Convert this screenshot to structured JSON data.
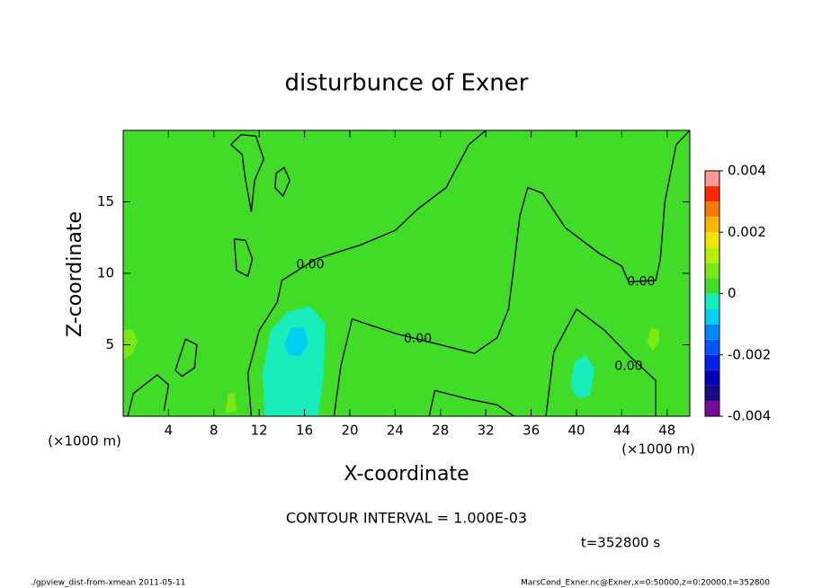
{
  "chart_data": {
    "type": "contour",
    "title": "disturbunce of Exner",
    "x_label": "X-coordinate",
    "y_label": "Z-coordinate",
    "x_unit": "(×1000 m)",
    "y_unit": "(×1000 m)",
    "xlim": [
      0,
      50
    ],
    "ylim": [
      0,
      20
    ],
    "xticks": [
      4,
      8,
      12,
      16,
      20,
      24,
      28,
      32,
      36,
      40,
      44,
      48
    ],
    "yticks": [
      5,
      10,
      15
    ],
    "colorbar": {
      "levels": [
        -0.004,
        -0.0035,
        -0.003,
        -0.0025,
        -0.002,
        -0.0015,
        -0.001,
        -0.0005,
        0,
        0.0005,
        0.001,
        0.0015,
        0.002,
        0.0025,
        0.003,
        0.0035,
        0.004
      ],
      "colors": [
        "#7a0a9a",
        "#1a0a8a",
        "#0000b8",
        "#0022e6",
        "#0055ff",
        "#0088ff",
        "#00d0f0",
        "#18eebb",
        "#40dc28",
        "#7ae814",
        "#b4f000",
        "#f0e600",
        "#ffb400",
        "#ff7800",
        "#ff2800",
        "#ff9a9a"
      ],
      "ticks": [
        0.004,
        0.002,
        0,
        -0.002,
        -0.004
      ]
    },
    "regions": [
      {
        "value": 0.0002,
        "points": [
          [
            0,
            0
          ],
          [
            50,
            0
          ],
          [
            50,
            20
          ],
          [
            0,
            20
          ]
        ]
      },
      {
        "value": -0.0004,
        "points": [
          [
            12.5,
            0
          ],
          [
            12.3,
            3
          ],
          [
            13,
            6
          ],
          [
            14.5,
            7.3
          ],
          [
            16.5,
            7.7
          ],
          [
            17.8,
            6.5
          ],
          [
            17.7,
            3
          ],
          [
            17.2,
            0
          ]
        ]
      },
      {
        "value": -0.0009,
        "points": [
          [
            14.2,
            5
          ],
          [
            14.8,
            6.2
          ],
          [
            16,
            6.2
          ],
          [
            16.3,
            5
          ],
          [
            15.6,
            4.2
          ],
          [
            14.6,
            4.3
          ]
        ]
      },
      {
        "value": -0.0004,
        "points": [
          [
            39.5,
            2
          ],
          [
            39.8,
            3.8
          ],
          [
            40.8,
            4.3
          ],
          [
            41.6,
            3.3
          ],
          [
            41.2,
            1.5
          ],
          [
            40.2,
            1.2
          ]
        ]
      },
      {
        "value": 0.0006,
        "points": [
          [
            0,
            4
          ],
          [
            0.8,
            4.3
          ],
          [
            1.3,
            5.3
          ],
          [
            0.8,
            6.1
          ],
          [
            0,
            6
          ]
        ]
      },
      {
        "value": 0.0006,
        "points": [
          [
            46.2,
            5.2
          ],
          [
            46.6,
            6.2
          ],
          [
            47.3,
            6.1
          ],
          [
            47.3,
            5.1
          ],
          [
            46.7,
            4.6
          ]
        ]
      },
      {
        "value": 0.0006,
        "points": [
          [
            9,
            0.2
          ],
          [
            9.3,
            1.6
          ],
          [
            9.8,
            1.7
          ],
          [
            10,
            0.4
          ]
        ]
      }
    ],
    "contours": [
      {
        "level": 0,
        "points": [
          [
            11.3,
            0
          ],
          [
            11,
            3
          ],
          [
            12,
            6
          ],
          [
            13.6,
            8
          ],
          [
            14,
            9.5
          ],
          [
            17,
            11
          ],
          [
            21,
            12
          ],
          [
            24,
            13
          ],
          [
            26,
            14.5
          ],
          [
            28.5,
            16
          ],
          [
            30.5,
            19
          ],
          [
            32,
            20
          ]
        ]
      },
      {
        "level": 0,
        "points": [
          [
            18.6,
            0
          ],
          [
            19.2,
            3.5
          ],
          [
            20.2,
            6.8
          ],
          [
            24,
            5.8
          ],
          [
            28,
            5
          ],
          [
            31,
            4.4
          ],
          [
            33,
            5.5
          ],
          [
            34,
            7.5
          ],
          [
            34.4,
            10
          ],
          [
            35,
            14
          ],
          [
            35.7,
            16
          ],
          [
            37,
            15.6
          ],
          [
            39,
            13.2
          ],
          [
            42,
            11.4
          ],
          [
            44,
            10.5
          ],
          [
            44.6,
            9.4
          ],
          [
            47,
            9.5
          ],
          [
            47.4,
            11
          ],
          [
            47.8,
            15
          ],
          [
            48.8,
            19
          ],
          [
            50,
            20
          ]
        ]
      },
      {
        "level": 0,
        "points": [
          [
            37.3,
            0
          ],
          [
            38,
            4.5
          ],
          [
            40,
            7.5
          ],
          [
            42.5,
            6
          ],
          [
            44.7,
            4.2
          ],
          [
            47,
            2.5
          ],
          [
            47,
            0
          ]
        ]
      },
      {
        "level": 0,
        "points": [
          [
            0.4,
            0
          ],
          [
            0.9,
            1.6
          ],
          [
            3,
            2.9
          ],
          [
            4,
            2.2
          ],
          [
            3.6,
            0.4
          ]
        ]
      },
      {
        "level": 0,
        "points": [
          [
            4.6,
            3.2
          ],
          [
            5.5,
            5.4
          ],
          [
            6.5,
            5
          ],
          [
            6.3,
            3.4
          ],
          [
            5.2,
            2.8
          ],
          [
            4.6,
            3.2
          ]
        ]
      },
      {
        "level": 0,
        "points": [
          [
            9.8,
            12.4
          ],
          [
            10,
            10.2
          ],
          [
            11,
            9.8
          ],
          [
            11.4,
            11
          ],
          [
            10.8,
            12.3
          ],
          [
            9.8,
            12.4
          ]
        ]
      },
      {
        "level": 0,
        "points": [
          [
            9.5,
            19
          ],
          [
            10.5,
            18.3
          ],
          [
            10.7,
            17
          ],
          [
            11.3,
            14.3
          ],
          [
            11.6,
            16.5
          ],
          [
            12.4,
            18
          ],
          [
            11.7,
            19.6
          ],
          [
            10.4,
            19.7
          ],
          [
            9.5,
            19
          ]
        ]
      },
      {
        "level": 0,
        "points": [
          [
            13.4,
            16
          ],
          [
            14.1,
            15.4
          ],
          [
            14.7,
            16.5
          ],
          [
            14.2,
            17.4
          ],
          [
            13.5,
            17
          ],
          [
            13.4,
            16
          ]
        ]
      },
      {
        "level": 0,
        "points": [
          [
            27,
            0
          ],
          [
            27.5,
            1.8
          ],
          [
            30.5,
            1.2
          ],
          [
            33,
            0.8
          ],
          [
            34.5,
            0
          ]
        ]
      }
    ],
    "contour_labels": [
      {
        "label": "0.00",
        "x": 16.5,
        "z": 10.6
      },
      {
        "label": "0.00",
        "x": 26,
        "z": 5.4
      },
      {
        "label": "0.00",
        "x": 45.7,
        "z": 9.4
      },
      {
        "label": "0.00",
        "x": 44.6,
        "z": 3.5
      }
    ],
    "note": "CONTOUR INTERVAL = 1.000E-03",
    "time": "t=352800 s",
    "footer_left": "./gpview_dist-from-xmean  2011-05-11",
    "footer_right": "MarsCond_Exner.nc@Exner,x=0:50000,z=0:20000,t=352800"
  }
}
